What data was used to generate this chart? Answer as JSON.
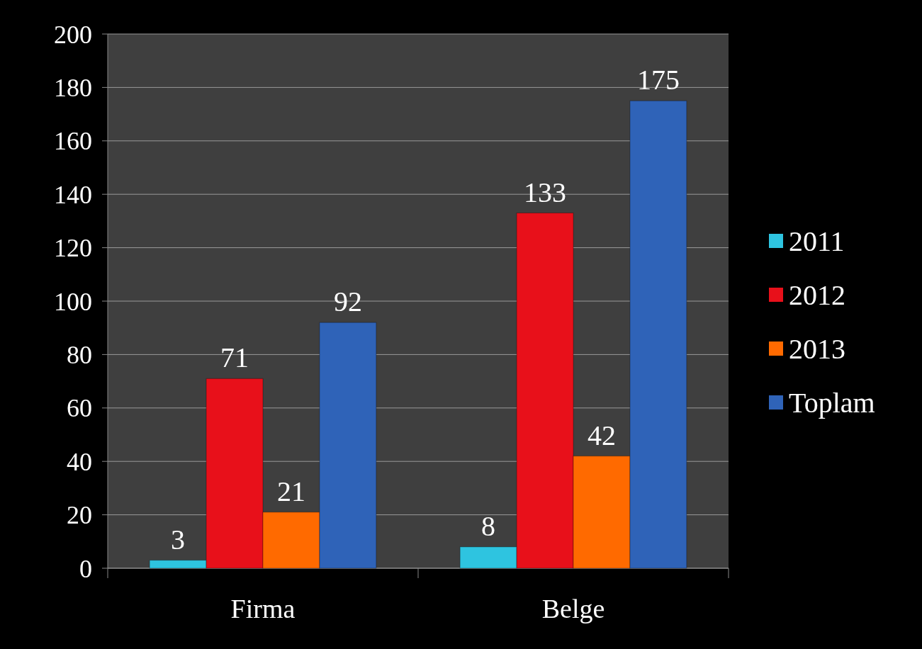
{
  "chart_data": {
    "type": "bar",
    "categories": [
      "Firma",
      "Belge"
    ],
    "series": [
      {
        "name": "2011",
        "color": "#2ec4e0",
        "values": [
          3,
          8
        ]
      },
      {
        "name": "2012",
        "color": "#e8101a",
        "values": [
          71,
          133
        ]
      },
      {
        "name": "2013",
        "color": "#ff6a00",
        "values": [
          21,
          42
        ]
      },
      {
        "name": "Toplam",
        "color": "#2f63b8",
        "values": [
          92,
          175
        ]
      }
    ],
    "ylim": [
      0,
      200
    ],
    "yticks": [
      0,
      20,
      40,
      60,
      80,
      100,
      120,
      140,
      160,
      180,
      200
    ],
    "grid": "y",
    "legend": "right",
    "data_labels": true
  }
}
